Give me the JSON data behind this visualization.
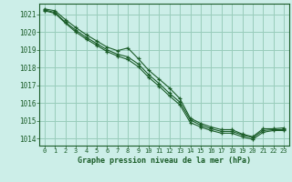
{
  "title": "Graphe pression niveau de la mer (hPa)",
  "bg_color": "#cceee8",
  "grid_color": "#99ccbb",
  "line_color": "#1a5c28",
  "xlim": [
    -0.5,
    23.5
  ],
  "ylim": [
    1013.6,
    1021.6
  ],
  "xticks": [
    0,
    1,
    2,
    3,
    4,
    5,
    6,
    7,
    8,
    9,
    10,
    11,
    12,
    13,
    14,
    15,
    16,
    17,
    18,
    19,
    20,
    21,
    22,
    23
  ],
  "yticks": [
    1014,
    1015,
    1016,
    1017,
    1018,
    1019,
    1020,
    1021
  ],
  "series": [
    [
      1021.3,
      1021.2,
      1020.7,
      1020.25,
      1019.85,
      1019.5,
      1019.15,
      1018.95,
      1019.1,
      1018.5,
      1017.85,
      1017.35,
      1016.85,
      1016.25,
      1015.15,
      1014.85,
      1014.65,
      1014.5,
      1014.5,
      1014.25,
      1014.1,
      1014.55,
      1014.55,
      1014.6
    ],
    [
      1021.25,
      1021.1,
      1020.55,
      1020.1,
      1019.7,
      1019.35,
      1019.0,
      1018.75,
      1018.6,
      1018.2,
      1017.6,
      1017.1,
      1016.55,
      1016.05,
      1015.05,
      1014.75,
      1014.55,
      1014.4,
      1014.4,
      1014.2,
      1014.05,
      1014.45,
      1014.5,
      1014.5
    ],
    [
      1021.2,
      1021.05,
      1020.5,
      1020.0,
      1019.6,
      1019.25,
      1018.9,
      1018.65,
      1018.45,
      1018.05,
      1017.45,
      1016.95,
      1016.4,
      1015.9,
      1014.9,
      1014.65,
      1014.45,
      1014.3,
      1014.3,
      1014.1,
      1013.95,
      1014.35,
      1014.45,
      1014.45
    ]
  ]
}
